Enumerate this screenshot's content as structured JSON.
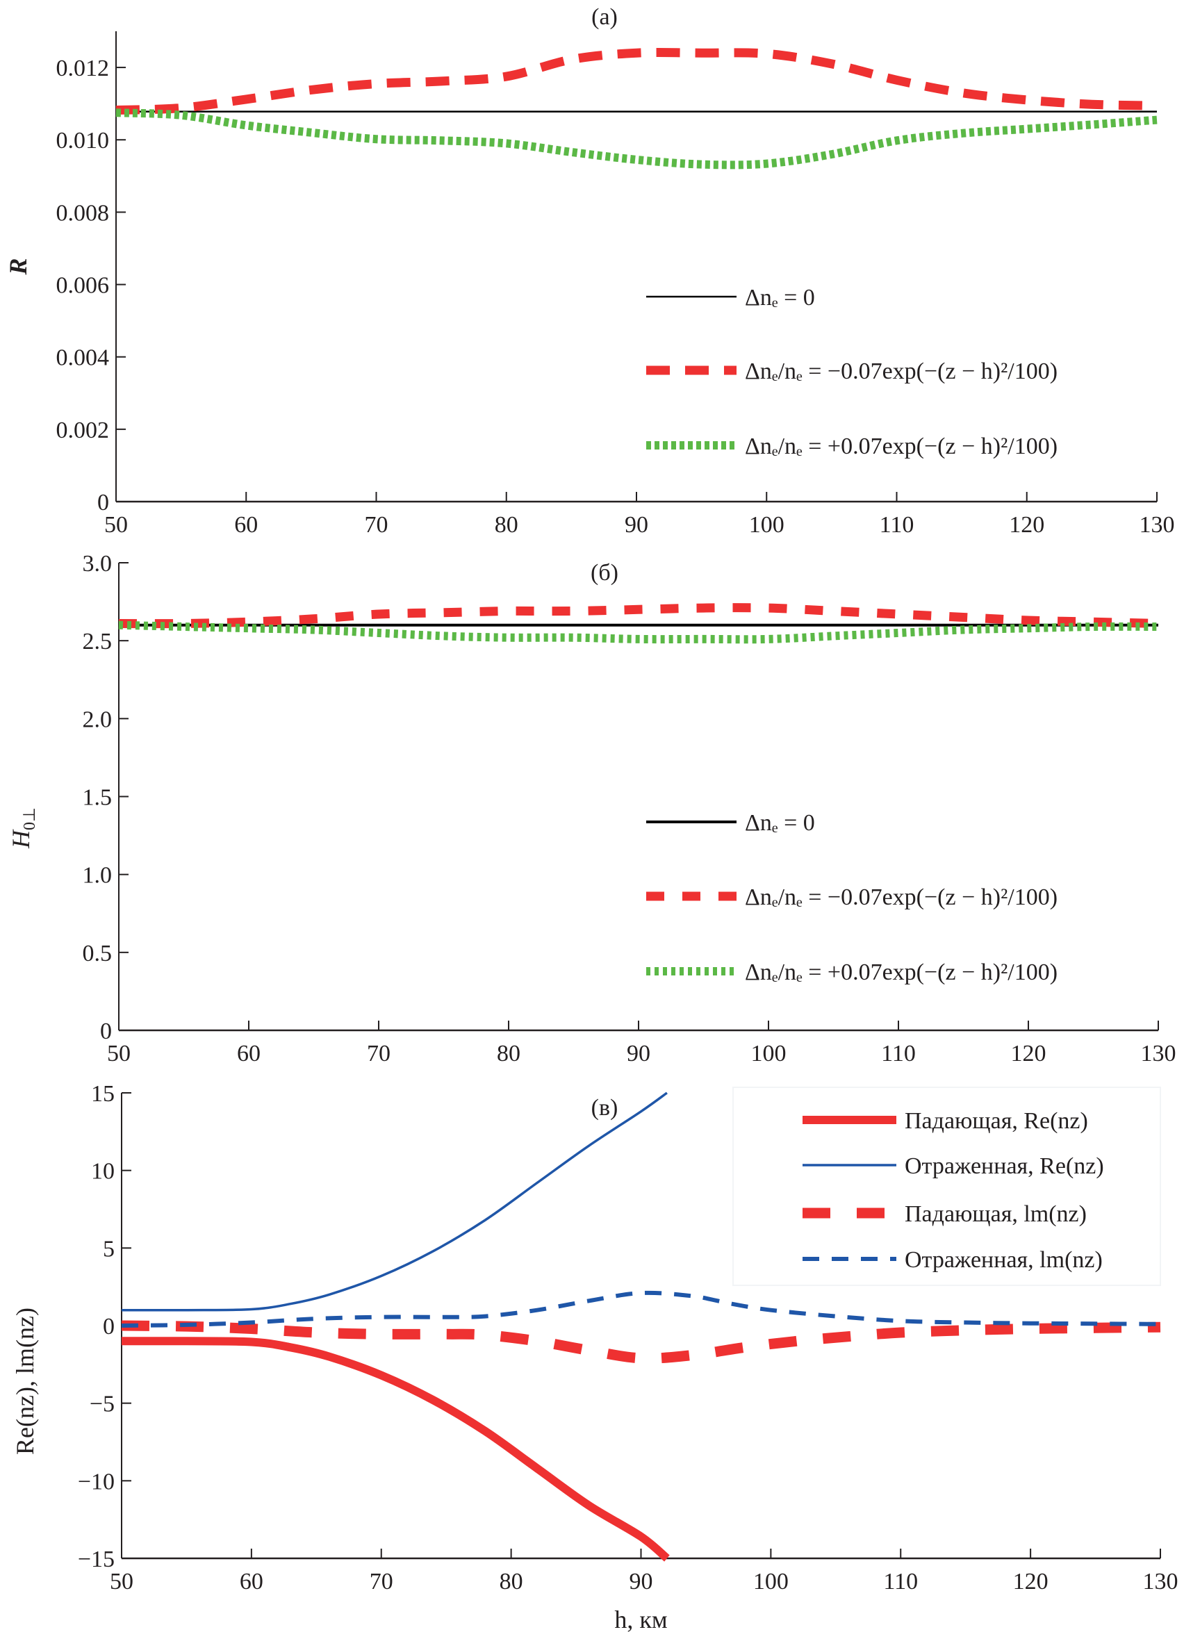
{
  "chart_data": [
    {
      "id": "a",
      "type": "line",
      "title": "(a)",
      "xlabel": "",
      "ylabel": "R",
      "xlim": [
        50,
        130
      ],
      "ylim": [
        0,
        0.013
      ],
      "xticks": [
        50,
        60,
        70,
        80,
        90,
        100,
        110,
        120,
        130
      ],
      "yticks": [
        0,
        0.002,
        0.004,
        0.006,
        0.008,
        0.01,
        0.012
      ],
      "ytick_labels": [
        "0",
        "0.002",
        "0.004",
        "0.006",
        "0.008",
        "0.010",
        "0.012"
      ],
      "grid": false,
      "legend_position": "center-right",
      "x": [
        50,
        55,
        60,
        65,
        70,
        75,
        80,
        85,
        90,
        95,
        100,
        105,
        110,
        115,
        120,
        125,
        130
      ],
      "series": [
        {
          "name": "Δn_e = 0",
          "label_parts": [
            "Δn",
            "e",
            " = 0"
          ],
          "style": "solid",
          "color": "#000000",
          "values": [
            0.01078,
            0.01078,
            0.01078,
            0.01078,
            0.01078,
            0.01078,
            0.01078,
            0.01078,
            0.01078,
            0.01078,
            0.01078,
            0.01078,
            0.01078,
            0.01078,
            0.01078,
            0.01078,
            0.01078
          ]
        },
        {
          "name": "Δn_e/n_e = −0.07exp(−(z − h)^2/100)",
          "style": "dashed",
          "color": "#ee3131",
          "values": [
            0.01082,
            0.01088,
            0.01112,
            0.01138,
            0.01155,
            0.01162,
            0.01175,
            0.01222,
            0.0124,
            0.0124,
            0.01238,
            0.0121,
            0.01165,
            0.0113,
            0.0111,
            0.01098,
            0.01094
          ]
        },
        {
          "name": "Δn_e/n_e = +0.07exp(−(z − h)^2/100)",
          "style": "dotted",
          "color": "#5bb846",
          "values": [
            0.01075,
            0.01068,
            0.0104,
            0.0102,
            0.01002,
            0.00998,
            0.0099,
            0.00966,
            0.00945,
            0.00932,
            0.00934,
            0.0096,
            0.00998,
            0.01018,
            0.0103,
            0.01042,
            0.01055
          ]
        }
      ]
    },
    {
      "id": "b",
      "type": "line",
      "title": "(б)",
      "xlabel": "",
      "ylabel": "H0⊥",
      "xlim": [
        50,
        130
      ],
      "ylim": [
        0,
        3.0
      ],
      "xticks": [
        50,
        60,
        70,
        80,
        90,
        100,
        110,
        120,
        130
      ],
      "yticks": [
        0,
        0.5,
        1.0,
        1.5,
        2.0,
        2.5,
        3.0
      ],
      "ytick_labels": [
        "0",
        "0.5",
        "1.0",
        "1.5",
        "2.0",
        "2.5",
        "3.0"
      ],
      "grid": false,
      "legend_position": "center-right",
      "x": [
        50,
        55,
        60,
        65,
        70,
        75,
        80,
        85,
        90,
        95,
        100,
        105,
        110,
        115,
        120,
        125,
        130
      ],
      "series": [
        {
          "name": "Δn_e = 0",
          "style": "solid",
          "color": "#000000",
          "values": [
            2.6,
            2.6,
            2.6,
            2.6,
            2.6,
            2.6,
            2.6,
            2.6,
            2.6,
            2.6,
            2.6,
            2.6,
            2.6,
            2.6,
            2.6,
            2.6,
            2.6
          ]
        },
        {
          "name": "Δn_e/n_e = −0.07exp(−(z − h)^2/100)",
          "style": "dashed",
          "color": "#ee3131",
          "values": [
            2.61,
            2.61,
            2.62,
            2.64,
            2.67,
            2.68,
            2.69,
            2.69,
            2.7,
            2.71,
            2.71,
            2.69,
            2.67,
            2.65,
            2.63,
            2.62,
            2.61
          ]
        },
        {
          "name": "Δn_e/n_e = +0.07exp(−(z − h)^2/100)",
          "style": "dotted",
          "color": "#5bb846",
          "values": [
            2.6,
            2.59,
            2.58,
            2.57,
            2.55,
            2.53,
            2.52,
            2.52,
            2.51,
            2.51,
            2.51,
            2.53,
            2.55,
            2.57,
            2.58,
            2.59,
            2.59
          ]
        }
      ]
    },
    {
      "id": "v",
      "type": "line",
      "title": "(в)",
      "xlabel": "h, км",
      "ylabel": "Re(n_z), lm(n_z)",
      "xlim": [
        50,
        130
      ],
      "ylim": [
        -15,
        15
      ],
      "xticks": [
        50,
        60,
        70,
        80,
        90,
        100,
        110,
        120,
        130
      ],
      "yticks": [
        -15,
        -10,
        -5,
        0,
        5,
        10,
        15
      ],
      "ytick_labels": [
        "−15",
        "−10",
        "−5",
        "0",
        "5",
        "10",
        "15"
      ],
      "grid": false,
      "legend_position": "top-right",
      "series": [
        {
          "name": "Падающая, Re(n_z)",
          "style": "solid-thick",
          "color": "#ee3131",
          "x": [
            50,
            55,
            60,
            63,
            66,
            70,
            74,
            78,
            82,
            86,
            90,
            92
          ],
          "values": [
            -1.0,
            -1.0,
            -1.05,
            -1.4,
            -2.0,
            -3.2,
            -4.8,
            -6.8,
            -9.2,
            -11.6,
            -13.6,
            -15.0
          ]
        },
        {
          "name": "Отраженная, Re(n_z)",
          "style": "solid",
          "color": "#1f56a8",
          "x": [
            50,
            55,
            60,
            63,
            66,
            70,
            74,
            78,
            82,
            86,
            90,
            92
          ],
          "values": [
            1.0,
            1.0,
            1.05,
            1.4,
            2.0,
            3.2,
            4.8,
            6.8,
            9.2,
            11.6,
            13.8,
            15.0
          ]
        },
        {
          "name": "Падающая, lm(n_z)",
          "style": "dashed-thick",
          "color": "#ee3131",
          "x": [
            50,
            55,
            60,
            65,
            70,
            75,
            78,
            82,
            86,
            90,
            94,
            98,
            102,
            106,
            110,
            115,
            120,
            125,
            130
          ],
          "values": [
            0.0,
            -0.05,
            -0.2,
            -0.45,
            -0.55,
            -0.55,
            -0.6,
            -1.0,
            -1.6,
            -2.1,
            -1.9,
            -1.4,
            -1.0,
            -0.7,
            -0.45,
            -0.3,
            -0.2,
            -0.15,
            -0.1
          ]
        },
        {
          "name": "Отраженная, lm(n_z)",
          "style": "dashed",
          "color": "#1f56a8",
          "x": [
            50,
            55,
            60,
            65,
            70,
            75,
            78,
            82,
            86,
            90,
            94,
            97,
            100,
            105,
            110,
            115,
            120,
            125,
            130
          ],
          "values": [
            0.0,
            0.05,
            0.2,
            0.45,
            0.55,
            0.55,
            0.6,
            1.0,
            1.6,
            2.1,
            1.9,
            1.4,
            1.0,
            0.6,
            0.3,
            0.2,
            0.15,
            0.12,
            0.1
          ]
        }
      ]
    }
  ]
}
